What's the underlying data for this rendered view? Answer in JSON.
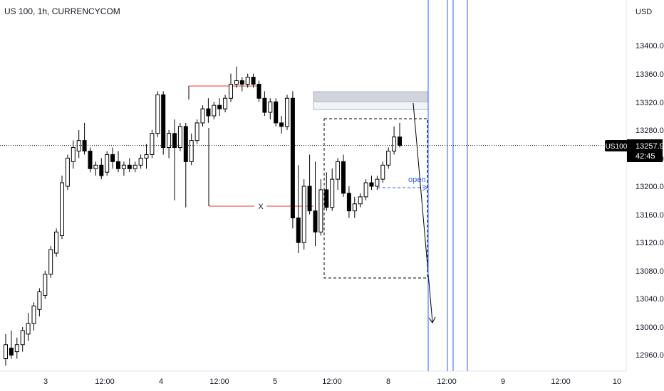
{
  "header": {
    "symbol_title": "US 100, 1h, CURRENCYCOM"
  },
  "price_axis": {
    "currency": "USD",
    "ticks": [
      "13400.0",
      "13360.0",
      "13320.0",
      "13280.0",
      "13240.0",
      "13200.0",
      "13160.0",
      "13120.0",
      "13080.0",
      "13040.0",
      "13000.0",
      "12960.0"
    ],
    "symbol_badge": "US100",
    "last_price": "13257.9",
    "countdown": "42:45"
  },
  "time_axis": {
    "ticks": [
      "3",
      "12:00",
      "4",
      "12:00",
      "5",
      "12:00",
      "8",
      "12:00",
      "9",
      "12:00",
      "10"
    ]
  },
  "annotations": {
    "x_marker": "X",
    "open_label": "open"
  },
  "colors": {
    "candle_up": "#ffffff",
    "candle_down": "#000000",
    "candle_border": "#000000",
    "red_line": "#e53935",
    "blue_line": "#2962ff",
    "zone_fill": "#d1d4dc",
    "text": "#131722",
    "badge_bg": "#000000"
  },
  "chart_data": {
    "type": "candlestick",
    "title": "US 100, 1h, CURRENCYCOM",
    "ylabel": "USD",
    "ylim": [
      12940,
      13440
    ],
    "last_price": 13257.9,
    "series": [
      {
        "name": "US100",
        "ohlc": [
          [
            12955,
            12990,
            12945,
            12975
          ],
          [
            12970,
            12995,
            12955,
            12960
          ],
          [
            12965,
            12985,
            12955,
            12975
          ],
          [
            12975,
            13000,
            12965,
            12995
          ],
          [
            12990,
            13020,
            12980,
            13005
          ],
          [
            13005,
            13035,
            12995,
            13030
          ],
          [
            13025,
            13055,
            13015,
            13050
          ],
          [
            13045,
            13080,
            13040,
            13075
          ],
          [
            13075,
            13115,
            13070,
            13110
          ],
          [
            13105,
            13140,
            13100,
            13135
          ],
          [
            13130,
            13215,
            13125,
            13205
          ],
          [
            13200,
            13245,
            13195,
            13240
          ],
          [
            13235,
            13265,
            13225,
            13255
          ],
          [
            13250,
            13280,
            13240,
            13265
          ],
          [
            13265,
            13290,
            13245,
            13250
          ],
          [
            13250,
            13255,
            13220,
            13225
          ],
          [
            13225,
            13235,
            13215,
            13230
          ],
          [
            13230,
            13240,
            13210,
            13215
          ],
          [
            13220,
            13250,
            13215,
            13245
          ],
          [
            13245,
            13255,
            13225,
            13235
          ],
          [
            13235,
            13250,
            13220,
            13225
          ],
          [
            13225,
            13235,
            13215,
            13230
          ],
          [
            13230,
            13240,
            13220,
            13225
          ],
          [
            13225,
            13235,
            13220,
            13230
          ],
          [
            13230,
            13245,
            13225,
            13240
          ],
          [
            13240,
            13260,
            13225,
            13245
          ],
          [
            13245,
            13280,
            13240,
            13275
          ],
          [
            13275,
            13335,
            13270,
            13330
          ],
          [
            13330,
            13335,
            13245,
            13255
          ],
          [
            13255,
            13280,
            13240,
            13275
          ],
          [
            13275,
            13295,
            13180,
            13255
          ],
          [
            13255,
            13290,
            13250,
            13285
          ],
          [
            13285,
            13290,
            13170,
            13235
          ],
          [
            13235,
            13275,
            13230,
            13265
          ],
          [
            13265,
            13295,
            13260,
            13290
          ],
          [
            13290,
            13315,
            13285,
            13310
          ],
          [
            13310,
            13325,
            13290,
            13300
          ],
          [
            13300,
            13320,
            13295,
            13315
          ],
          [
            13315,
            13325,
            13300,
            13310
          ],
          [
            13310,
            13330,
            13305,
            13325
          ],
          [
            13325,
            13360,
            13320,
            13345
          ],
          [
            13345,
            13370,
            13340,
            13350
          ],
          [
            13350,
            13355,
            13335,
            13345
          ],
          [
            13345,
            13360,
            13340,
            13355
          ],
          [
            13355,
            13360,
            13340,
            13345
          ],
          [
            13345,
            13350,
            13320,
            13325
          ],
          [
            13325,
            13335,
            13300,
            13305
          ],
          [
            13305,
            13325,
            13295,
            13320
          ],
          [
            13320,
            13325,
            13285,
            13290
          ],
          [
            13290,
            13300,
            13275,
            13285
          ],
          [
            13285,
            13330,
            13280,
            13325
          ],
          [
            13325,
            13335,
            13140,
            13155
          ],
          [
            13155,
            13230,
            13105,
            13120
          ],
          [
            13120,
            13210,
            13110,
            13200
          ],
          [
            13200,
            13245,
            13160,
            13165
          ],
          [
            13165,
            13235,
            13115,
            13135
          ],
          [
            13135,
            13210,
            13130,
            13195
          ],
          [
            13195,
            13220,
            13165,
            13170
          ],
          [
            13170,
            13225,
            13165,
            13210
          ],
          [
            13210,
            13240,
            13195,
            13235
          ],
          [
            13235,
            13245,
            13185,
            13190
          ],
          [
            13190,
            13200,
            13155,
            13165
          ],
          [
            13165,
            13185,
            13155,
            13175
          ],
          [
            13175,
            13190,
            13170,
            13185
          ],
          [
            13185,
            13210,
            13180,
            13205
          ],
          [
            13205,
            13215,
            13195,
            13200
          ],
          [
            13200,
            13215,
            13195,
            13210
          ],
          [
            13210,
            13235,
            13205,
            13230
          ],
          [
            13230,
            13255,
            13225,
            13250
          ],
          [
            13250,
            13285,
            13245,
            13270
          ],
          [
            13270,
            13290,
            13255,
            13258
          ]
        ]
      }
    ],
    "x_ticks": [
      "3",
      "12:00",
      "4",
      "12:00",
      "5",
      "12:00",
      "8",
      "12:00",
      "9",
      "12:00",
      "10"
    ],
    "y_ticks": [
      13400,
      13360,
      13320,
      13280,
      13240,
      13200,
      13160,
      13120,
      13080,
      13040,
      13000,
      12960
    ],
    "grid": false,
    "legend": "none"
  }
}
